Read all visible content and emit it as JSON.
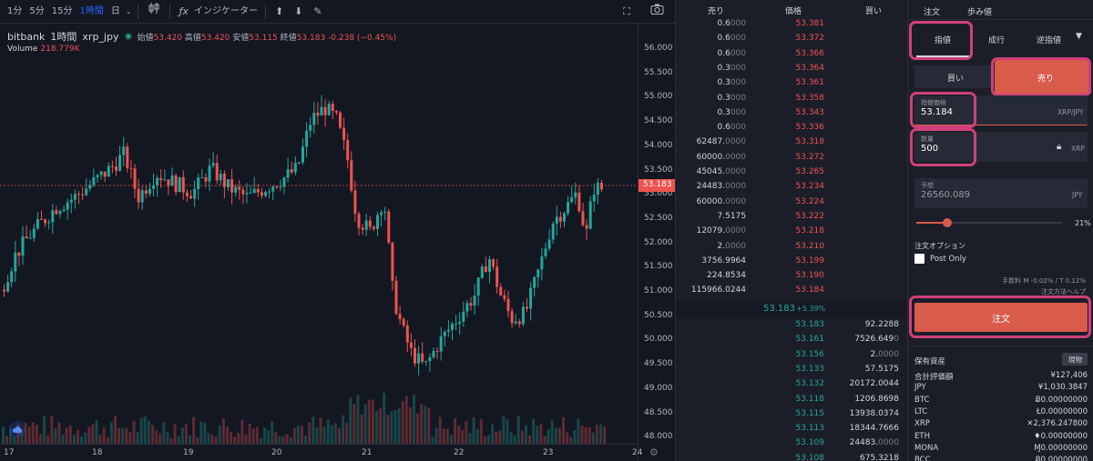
{
  "toolbar": {
    "timeframes": [
      "1分",
      "5分",
      "15分",
      "1時間",
      "日"
    ],
    "active_timeframe": "1時間",
    "indicators_label": "インジケーター"
  },
  "legend": {
    "exchange": "bitbank",
    "interval": "1時間",
    "pair": "xrp_jpy",
    "open_label": "始値",
    "open": "53.420",
    "high_label": "高値",
    "high": "53.420",
    "low_label": "安値",
    "low": "53.115",
    "close_label": "終値",
    "close": "53.183",
    "change": "-0.238 (−0.45%)",
    "volume_label": "Volume",
    "volume": "218.779K"
  },
  "price_axis": [
    "56.000",
    "55.500",
    "55.000",
    "54.500",
    "54.000",
    "53.500",
    "53.000",
    "52.500",
    "52.000",
    "51.500",
    "51.000",
    "50.500",
    "50.000",
    "49.500",
    "49.000",
    "48.500",
    "48.000"
  ],
  "current_price_tag": "53.183",
  "time_axis": [
    "17",
    "18",
    "19",
    "20",
    "21",
    "22",
    "23",
    "24"
  ],
  "order_book": {
    "headers": {
      "sell": "売り",
      "price": "価格",
      "buy": "買い"
    },
    "asks": [
      {
        "amt": "0.6",
        "dec": "000",
        "price": "53.381"
      },
      {
        "amt": "0.6",
        "dec": "000",
        "price": "53.372"
      },
      {
        "amt": "0.6",
        "dec": "000",
        "price": "53.366"
      },
      {
        "amt": "0.3",
        "dec": "000",
        "price": "53.364"
      },
      {
        "amt": "0.3",
        "dec": "000",
        "price": "53.361"
      },
      {
        "amt": "0.3",
        "dec": "000",
        "price": "53.358"
      },
      {
        "amt": "0.3",
        "dec": "000",
        "price": "53.343"
      },
      {
        "amt": "0.6",
        "dec": "000",
        "price": "53.336"
      },
      {
        "amt": "62487.",
        "dec": "0000",
        "price": "53.318"
      },
      {
        "amt": "60000.",
        "dec": "0000",
        "price": "53.272"
      },
      {
        "amt": "45045.",
        "dec": "0000",
        "price": "53.265"
      },
      {
        "amt": "24483.",
        "dec": "0000",
        "price": "53.234"
      },
      {
        "amt": "60000.",
        "dec": "0000",
        "price": "53.224"
      },
      {
        "amt": "7.5175",
        "dec": "",
        "price": "53.222"
      },
      {
        "amt": "12079.",
        "dec": "0000",
        "price": "53.218"
      },
      {
        "amt": "2.",
        "dec": "0000",
        "price": "53.210"
      },
      {
        "amt": "3756.9964",
        "dec": "",
        "price": "53.199"
      },
      {
        "amt": "224.8534",
        "dec": "",
        "price": "53.190"
      },
      {
        "amt": "115966.0244",
        "dec": "",
        "price": "53.184"
      }
    ],
    "last_price": "53.183",
    "last_change": "+5.39%",
    "bids": [
      {
        "price": "53.183",
        "amt": "92.2288",
        "dec": ""
      },
      {
        "price": "53.161",
        "amt": "7526.649",
        "dec": "0"
      },
      {
        "price": "53.156",
        "amt": "2.",
        "dec": "0000"
      },
      {
        "price": "53.133",
        "amt": "57.5175",
        "dec": ""
      },
      {
        "price": "53.132",
        "amt": "20172.0044",
        "dec": ""
      },
      {
        "price": "53.118",
        "amt": "1206.8698",
        "dec": ""
      },
      {
        "price": "53.115",
        "amt": "13938.0374",
        "dec": ""
      },
      {
        "price": "53.113",
        "amt": "18344.7666",
        "dec": ""
      },
      {
        "price": "53.109",
        "amt": "24483.",
        "dec": "0000"
      },
      {
        "price": "53.108",
        "amt": "675.3218",
        "dec": ""
      }
    ]
  },
  "form": {
    "top_tabs": {
      "order": "注文",
      "trades": "歩み値"
    },
    "type_tabs": {
      "limit": "指値",
      "market": "成行",
      "stop": "逆指値"
    },
    "side": {
      "buy": "買い",
      "sell": "売り"
    },
    "limit_price_label": "指値価格",
    "limit_price": "53.184",
    "limit_price_unit": "XRP/JPY",
    "qty_label": "数量",
    "qty": "500",
    "qty_unit": "XRP",
    "estimate_label": "予想",
    "estimate": "26560.089",
    "estimate_unit": "JPY",
    "slider_pct": "21%",
    "slider_value": 0.21,
    "options_label": "注文オプション",
    "post_only_label": "Post Only",
    "fee_text": "手数料 M -0.02% / T 0.12%",
    "help_text": "注文方法ヘルプ",
    "submit_label": "注文",
    "assets_title": "保有資産",
    "assets_toggle": "現物",
    "assets": [
      {
        "name": "合計評価額",
        "value": "¥127,406"
      },
      {
        "name": "JPY",
        "value": "¥1,030.3847"
      },
      {
        "name": "BTC",
        "value": "Ƀ0.00000000"
      },
      {
        "name": "LTC",
        "value": "Ł0.00000000"
      },
      {
        "name": "XRP",
        "value": "✕2,376.247800"
      },
      {
        "name": "ETH",
        "value": "♦0.00000000"
      },
      {
        "name": "MONA",
        "value": "Ɱ0.00000000"
      },
      {
        "name": "BCC",
        "value": "Ƀ0.00000000"
      }
    ]
  },
  "colors": {
    "up": "#26a69a",
    "down": "#ef5350",
    "accent": "#d95b4c",
    "highlight": "#d0407a"
  }
}
